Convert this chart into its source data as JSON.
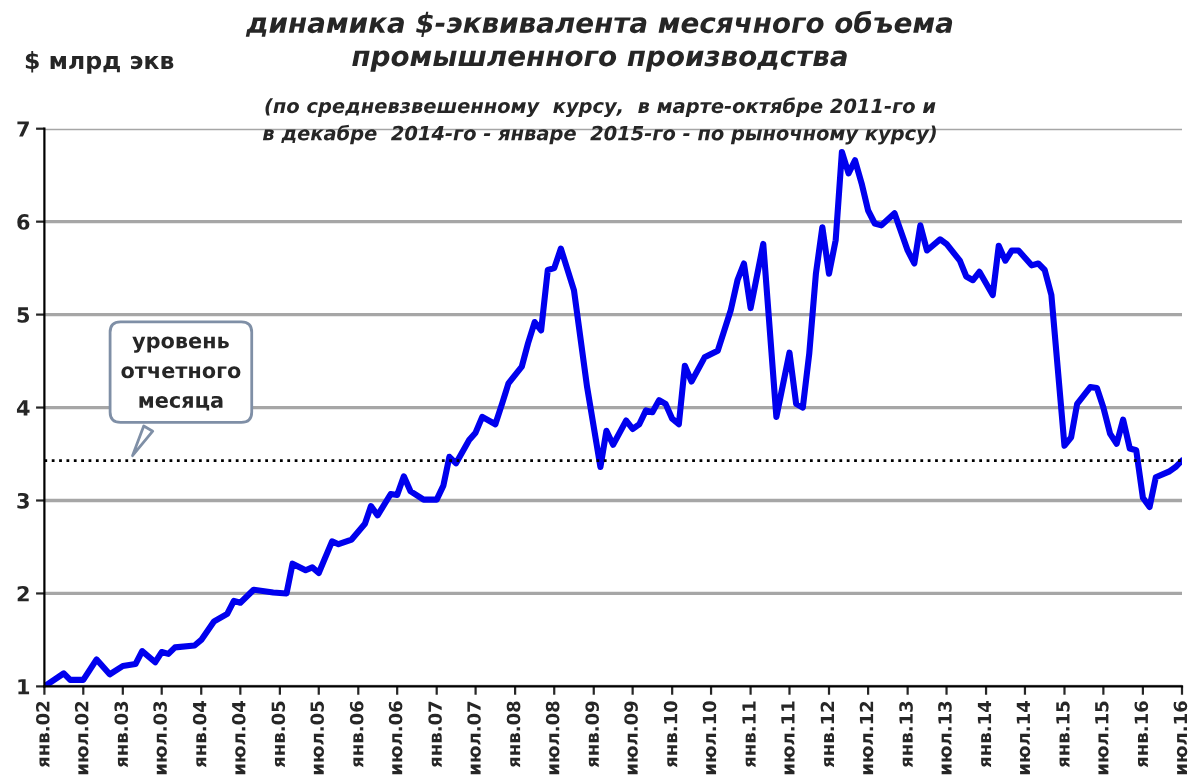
{
  "chart_data": {
    "type": "line",
    "title": "динамика $-эквивалента месячного объема\nпромышленного производства",
    "subtitle": "(по средневзвешенному  курсу,  в марте-октябре 2011-го и\nв декабре  2014-го - январе  2015-го - по рыночному курсу)",
    "ylabel": "$ млрд экв",
    "x": [
      "2002-01",
      "2002-04",
      "2002-05",
      "2002-07",
      "2002-09",
      "2002-11",
      "2003-01",
      "2003-03",
      "2003-04",
      "2003-06",
      "2003-07",
      "2003-08",
      "2003-09",
      "2003-12",
      "2004-01",
      "2004-03",
      "2004-05",
      "2004-06",
      "2004-07",
      "2004-09",
      "2004-12",
      "2005-02",
      "2005-03",
      "2005-05",
      "2005-06",
      "2005-07",
      "2005-09",
      "2005-10",
      "2005-12",
      "2006-02",
      "2006-03",
      "2006-04",
      "2006-06",
      "2006-07",
      "2006-08",
      "2006-09",
      "2006-11",
      "2007-01",
      "2007-02",
      "2007-03",
      "2007-04",
      "2007-06",
      "2007-07",
      "2007-08",
      "2007-10",
      "2007-11",
      "2007-12",
      "2008-02",
      "2008-03",
      "2008-04",
      "2008-05",
      "2008-06",
      "2008-07",
      "2008-08",
      "2008-10",
      "2008-12",
      "2009-02",
      "2009-03",
      "2009-04",
      "2009-06",
      "2009-07",
      "2009-08",
      "2009-09",
      "2009-10",
      "2009-11",
      "2009-12",
      "2010-01",
      "2010-02",
      "2010-03",
      "2010-04",
      "2010-06",
      "2010-08",
      "2010-10",
      "2010-11",
      "2010-12",
      "2011-01",
      "2011-03",
      "2011-05",
      "2011-07",
      "2011-08",
      "2011-09",
      "2011-10",
      "2011-11",
      "2011-12",
      "2012-01",
      "2012-02",
      "2012-03",
      "2012-04",
      "2012-05",
      "2012-06",
      "2012-07",
      "2012-08",
      "2012-09",
      "2012-11",
      "2013-01",
      "2013-02",
      "2013-03",
      "2013-04",
      "2013-06",
      "2013-07",
      "2013-09",
      "2013-10",
      "2013-11",
      "2013-12",
      "2014-02",
      "2014-03",
      "2014-04",
      "2014-05",
      "2014-06",
      "2014-08",
      "2014-09",
      "2014-10",
      "2014-11",
      "2015-01",
      "2015-02",
      "2015-03",
      "2015-05",
      "2015-06",
      "2015-07",
      "2015-08",
      "2015-09",
      "2015-10",
      "2015-11",
      "2015-12",
      "2016-01",
      "2016-02",
      "2016-03",
      "2016-05",
      "2016-06",
      "2016-07"
    ],
    "series": [
      {
        "color": "#0000ee",
        "values": [
          1.0,
          1.14,
          1.07,
          1.07,
          1.29,
          1.13,
          1.22,
          1.24,
          1.38,
          1.26,
          1.37,
          1.35,
          1.42,
          1.44,
          1.5,
          1.7,
          1.78,
          1.92,
          1.9,
          2.04,
          2.01,
          2.0,
          2.32,
          2.25,
          2.28,
          2.22,
          2.56,
          2.53,
          2.58,
          2.75,
          2.94,
          2.84,
          3.07,
          3.06,
          3.26,
          3.1,
          3.01,
          3.01,
          3.16,
          3.47,
          3.4,
          3.65,
          3.73,
          3.9,
          3.82,
          4.04,
          4.26,
          4.44,
          4.69,
          4.92,
          4.83,
          5.48,
          5.5,
          5.71,
          5.26,
          4.22,
          3.36,
          3.75,
          3.6,
          3.86,
          3.77,
          3.82,
          3.97,
          3.95,
          4.08,
          4.04,
          3.88,
          3.82,
          4.45,
          4.28,
          4.54,
          4.61,
          5.05,
          5.37,
          5.55,
          5.07,
          5.76,
          3.9,
          4.59,
          4.04,
          4.0,
          4.58,
          5.44,
          5.94,
          5.44,
          5.8,
          6.75,
          6.52,
          6.66,
          6.41,
          6.12,
          5.98,
          5.96,
          6.09,
          5.69,
          5.55,
          5.96,
          5.69,
          5.81,
          5.76,
          5.58,
          5.41,
          5.37,
          5.46,
          5.21,
          5.74,
          5.58,
          5.69,
          5.69,
          5.53,
          5.55,
          5.48,
          5.21,
          3.59,
          3.68,
          4.04,
          4.22,
          4.21,
          4.0,
          3.72,
          3.61,
          3.87,
          3.56,
          3.54,
          3.03,
          2.93,
          3.25,
          3.31,
          3.36,
          3.43
        ]
      }
    ],
    "xlim": [
      "2002-01",
      "2016-07"
    ],
    "xticks": [
      {
        "value": "2002-01",
        "label": "янв.02"
      },
      {
        "value": "2002-07",
        "label": "июл.02"
      },
      {
        "value": "2003-01",
        "label": "янв.03"
      },
      {
        "value": "2003-07",
        "label": "июл.03"
      },
      {
        "value": "2004-01",
        "label": "янв.04"
      },
      {
        "value": "2004-07",
        "label": "июл.04"
      },
      {
        "value": "2005-01",
        "label": "янв.05"
      },
      {
        "value": "2005-07",
        "label": "июл.05"
      },
      {
        "value": "2006-01",
        "label": "янв.06"
      },
      {
        "value": "2006-07",
        "label": "июл.06"
      },
      {
        "value": "2007-01",
        "label": "янв.07"
      },
      {
        "value": "2007-07",
        "label": "июл.07"
      },
      {
        "value": "2008-01",
        "label": "янв.08"
      },
      {
        "value": "2008-07",
        "label": "июл.08"
      },
      {
        "value": "2009-01",
        "label": "янв.09"
      },
      {
        "value": "2009-07",
        "label": "июл.09"
      },
      {
        "value": "2010-01",
        "label": "янв.10"
      },
      {
        "value": "2010-07",
        "label": "июл.10"
      },
      {
        "value": "2011-01",
        "label": "янв.11"
      },
      {
        "value": "2011-07",
        "label": "июл.11"
      },
      {
        "value": "2012-01",
        "label": "янв.12"
      },
      {
        "value": "2012-07",
        "label": "июл.12"
      },
      {
        "value": "2013-01",
        "label": "янв.13"
      },
      {
        "value": "2013-07",
        "label": "июл.13"
      },
      {
        "value": "2014-01",
        "label": "янв.14"
      },
      {
        "value": "2014-07",
        "label": "июл.14"
      },
      {
        "value": "2015-01",
        "label": "янв.15"
      },
      {
        "value": "2015-07",
        "label": "июл.15"
      },
      {
        "value": "2016-01",
        "label": "янв.16"
      },
      {
        "value": "2016-07",
        "label": "июл.16"
      }
    ],
    "ylim": [
      1,
      7
    ],
    "yticks": [
      1,
      2,
      3,
      4,
      5,
      6,
      7
    ],
    "ref_lines": [
      {
        "axis": "y",
        "value": 3.43,
        "label": "уровень\nотчетного\nмесяца",
        "color": "#000000",
        "line_style": "dotted"
      }
    ],
    "grid": "y"
  }
}
